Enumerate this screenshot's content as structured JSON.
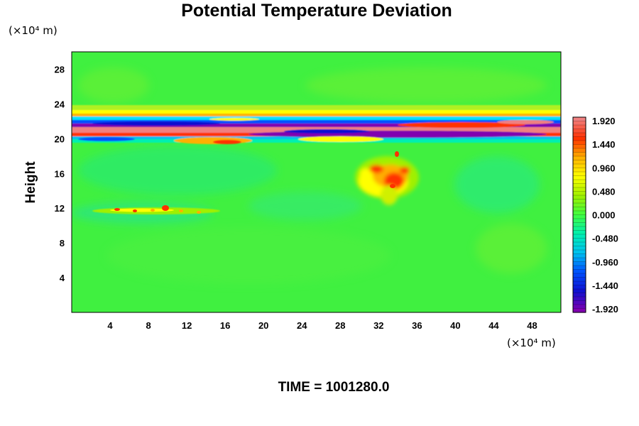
{
  "chart_data": {
    "type": "heatmap",
    "title": "Potential Temperature Deviation",
    "ylabel": "Height",
    "x_unit": "(×10⁴ m)",
    "y_unit": "(×10⁴ m)",
    "x_ticks": [
      "4",
      "8",
      "12",
      "16",
      "20",
      "24",
      "28",
      "32",
      "36",
      "40",
      "44",
      "48"
    ],
    "y_ticks": [
      "4",
      "8",
      "12",
      "16",
      "20",
      "24",
      "28"
    ],
    "xlim": [
      0,
      51
    ],
    "ylim": [
      0,
      30
    ],
    "colorbar": {
      "labels": [
        "1.920",
        "1.440",
        "0.960",
        "0.480",
        "0.000",
        "-0.480",
        "-0.960",
        "-1.440",
        "-1.920"
      ],
      "range": [
        -1.92,
        1.92
      ],
      "colors_low_to_high": [
        "#8000b0",
        "#1010d0",
        "#0050ff",
        "#00c0f0",
        "#00f0b0",
        "#40ff40",
        "#a0f000",
        "#ffff00",
        "#ffb000",
        "#ff3000",
        "#f08080"
      ]
    },
    "background_value": 0.0,
    "features": [
      {
        "kind": "zonal band",
        "y_range": [
          19.5,
          22.5
        ],
        "values": "alternating -1.92 to 1.92"
      },
      {
        "kind": "warm plume",
        "x_center": 34,
        "y_center": 15.5,
        "peak": 1.9
      },
      {
        "kind": "weak warm line",
        "x_range": [
          4,
          16
        ],
        "y": 11.5,
        "peak": 1.9
      }
    ],
    "grid": false,
    "legend_placement": "right colorbar"
  },
  "footer": {
    "time_label": "TIME = 1001280.0"
  }
}
